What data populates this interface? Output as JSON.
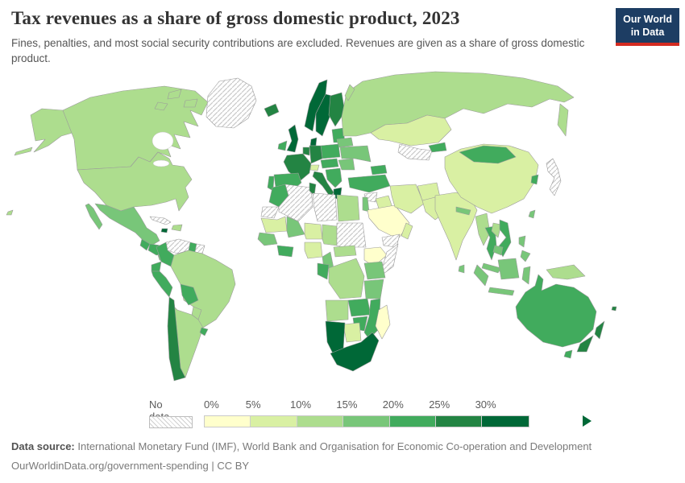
{
  "header": {
    "title": "Tax revenues as a share of gross domestic product, 2023",
    "subtitle": "Fines, penalties, and most social security contributions are excluded. Revenues are given as a share of gross domestic product.",
    "logo_line1": "Our World",
    "logo_line2": "in Data",
    "logo_bg": "#1d3d63",
    "logo_accent": "#d42b21"
  },
  "legend": {
    "no_data_label": "No data",
    "tick_labels": [
      "0%",
      "5%",
      "10%",
      "15%",
      "20%",
      "25%",
      "30%"
    ],
    "buckets": [
      "b0",
      "b1",
      "b2",
      "b3",
      "b4",
      "b5",
      "b6"
    ],
    "bucket_colors": {
      "b0": "#ffffcc",
      "b1": "#d9f0a3",
      "b2": "#addd8e",
      "b3": "#78c679",
      "b4": "#41ab5d",
      "b5": "#238443",
      "b6": "#006837"
    }
  },
  "footer": {
    "source_label": "Data source:",
    "source_text": " International Monetary Fund (IMF), World Bank and Organisation for Economic Co-operation and Development",
    "license_line": "OurWorldinData.org/government-spending | CC BY"
  },
  "chart_data": {
    "type": "heatmap",
    "subtype": "world-choropleth",
    "title": "Tax revenues as a share of gross domestic product, 2023",
    "unit": "% of GDP",
    "bin_edges_percent": [
      0,
      5,
      10,
      15,
      20,
      25,
      30
    ],
    "bin_ranges": {
      "b0": "0-5%",
      "b1": "5-10%",
      "b2": "10-15%",
      "b3": "15-20%",
      "b4": "20-25%",
      "b5": "25-30%",
      "b6": "30%+",
      "nodata": "No data"
    },
    "legend_position": "bottom",
    "note": "Region-to-bin assignments are listed in map.regions"
  },
  "map": {
    "ocean": "#ffffff",
    "border": "#9b9b9b",
    "nodata_border": "#bdbdbd",
    "regions": {
      "alaska": "b2",
      "canada": "b2",
      "usa": "b2",
      "greenland": "nodata",
      "mexico": "b3",
      "guatemala": "b4",
      "honduras-nicaragua": "b4",
      "costa-rica-panama": "b3",
      "cuba": "nodata",
      "jamaica": "b6",
      "hispaniola": "b2",
      "hawaii": "b2",
      "venezuela": "nodata",
      "guyana": "b4",
      "suriname": "nodata",
      "colombia": "b4",
      "ecuador": "b4",
      "peru": "b4",
      "brazil": "b2",
      "bolivia": "b4",
      "paraguay": "b2",
      "chile": "b5",
      "argentina": "b2",
      "uruguay": "b4",
      "iceland": "b5",
      "ireland": "b4",
      "uk": "b6",
      "norway": "b6",
      "sweden": "b6",
      "finland": "b5",
      "denmark": "b6",
      "baltics": "b4",
      "belarus": "b3",
      "poland": "b4",
      "germany": "b5",
      "benelux": "b5",
      "france": "b5",
      "switzerland": "b1",
      "austria-czech": "b4",
      "spain": "b4",
      "portugal": "b4",
      "italy": "b5",
      "balkans": "b4",
      "greece": "b6",
      "romania": "b3",
      "ukraine": "b3",
      "russia": "b2",
      "kazakhstan": "b1",
      "uzbek-turkmen": "nodata",
      "kyrgyz": "b4",
      "caucasus": "b4",
      "turkey": "b4",
      "syria": "nodata",
      "iraq": "b1",
      "israel-jordan": "b3",
      "saudi": "b0",
      "yemen": "nodata",
      "oman": "b1",
      "iran": "b1",
      "afghanistan": "b1",
      "pakistan": "b1",
      "india": "b1",
      "nepal": "b3",
      "sri-lanka": "b3",
      "china": "b1",
      "mongolia": "b4",
      "south-korea": "b4",
      "japan": "nodata",
      "taiwan": "b3",
      "myanmar": "b2",
      "thailand": "b4",
      "laos": "b2",
      "vietnam": "b4",
      "cambodia": "b3",
      "malaysia": "b3",
      "philippines": "b3",
      "indonesia": "b3",
      "new-guinea": "b2",
      "australia": "b4",
      "tasmania": "b4",
      "new-zealand": "b5",
      "fiji": "b5",
      "morocco": "b4",
      "western-sahara": "nodata",
      "algeria": "nodata",
      "tunisia": "b5",
      "libya": "nodata",
      "egypt": "b2",
      "mauritania": "b1",
      "mali": "b3",
      "niger": "b1",
      "chad": "b2",
      "sudan": "nodata",
      "ethiopia": "b0",
      "somalia": "nodata",
      "senegal-guinea": "b3",
      "ivory-ghana": "b4",
      "nigeria": "b1",
      "cameroon": "b3",
      "car": "b2",
      "congo-gabon": "b4",
      "drc": "b2",
      "uganda-kenya": "b3",
      "tanzania": "b3",
      "angola": "b2",
      "zambia": "b4",
      "zimbabwe": "b4",
      "mozambique": "b4",
      "botswana": "b1",
      "namibia": "b6",
      "south-africa": "b6",
      "madagascar": "b0"
    }
  }
}
